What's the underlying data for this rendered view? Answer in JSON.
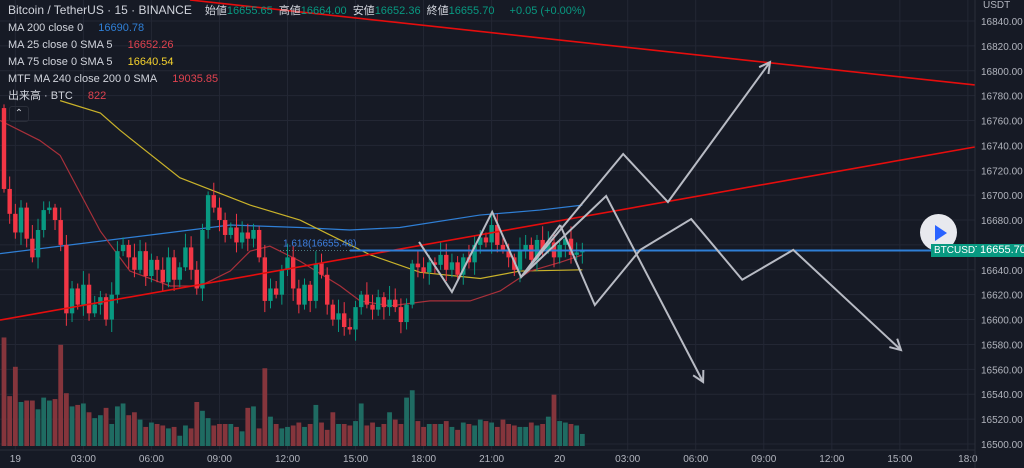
{
  "header": {
    "title": "Bitcoin / TetherUS · 15 · BINANCE",
    "ohlc": [
      {
        "label": "始値",
        "value": "16655.65"
      },
      {
        "label": "高値",
        "value": "16664.00"
      },
      {
        "label": "安値",
        "value": "16652.36"
      },
      {
        "label": "終値",
        "value": "16655.70"
      }
    ],
    "change": "+0.05 (+0.00%)"
  },
  "indicators": [
    {
      "label": "MA 200 close 0",
      "value": "16690.78",
      "color": "#2f7fd6"
    },
    {
      "label": "MA 25 close 0 SMA 5",
      "value": "16652.26",
      "color": "#e0424f"
    },
    {
      "label": "MA 75 close 0 SMA 5",
      "value": "16640.54",
      "color": "#f5d22d"
    },
    {
      "label": "MTF MA 240 close 200 0 SMA",
      "value": "19035.85",
      "color": "#e0424f"
    },
    {
      "label": "出来高 · BTC",
      "value": "822",
      "color": "#e0424f"
    }
  ],
  "collapse_icon": "chevron-up-icon",
  "play_icon": "play-icon",
  "price_axis": {
    "unit": "USDT",
    "min": 16500,
    "max": 16840,
    "step": 20
  },
  "time_axis": {
    "labels": [
      "19",
      "03:00",
      "06:00",
      "09:00",
      "12:00",
      "15:00",
      "18:00",
      "21:00",
      "20",
      "03:00",
      "06:00",
      "09:00",
      "12:00",
      "15:00",
      "18:0"
    ],
    "candles_per_label": 12,
    "first_label_index": 2
  },
  "symbol_tag": "BTCUSDT",
  "last_price": "16655.70",
  "fib_label": "1.618(16655.48)",
  "colors": {
    "up": "#089981",
    "down": "#f23645",
    "background": "#161a25",
    "grid": "#232734",
    "trend": "#e50d0d",
    "fib": "#2f7fd6",
    "projection": "#b8bbc4"
  },
  "chart_data": {
    "type": "candlestick",
    "first_open": 16770,
    "close": [
      16705,
      16685,
      16670,
      16690,
      16665,
      16650,
      16672,
      16688,
      16690,
      16680,
      16660,
      16605,
      16625,
      16612,
      16628,
      16605,
      16612,
      16618,
      16600,
      16620,
      16655,
      16660,
      16650,
      16640,
      16655,
      16635,
      16648,
      16640,
      16630,
      16650,
      16632,
      16642,
      16658,
      16640,
      16625,
      16672,
      16700,
      16690,
      16680,
      16668,
      16674,
      16662,
      16670,
      16665,
      16672,
      16650,
      16615,
      16625,
      16620,
      16640,
      16650,
      16625,
      16612,
      16628,
      16615,
      16645,
      16636,
      16612,
      16600,
      16605,
      16594,
      16592,
      16610,
      16620,
      16612,
      16608,
      16618,
      16610,
      16616,
      16610,
      16598,
      16612,
      16645,
      16642,
      16638,
      16646,
      16644,
      16652,
      16640,
      16646,
      16636,
      16650,
      16646,
      16660,
      16666,
      16662,
      16676,
      16660,
      16656,
      16650,
      16640,
      16656,
      16660,
      16648,
      16664,
      16656,
      16662,
      16650,
      16660,
      16665,
      16652,
      16654,
      16655.7
    ],
    "volume": [
      7400,
      3400,
      5400,
      3000,
      3100,
      3100,
      2500,
      3300,
      3100,
      3200,
      6900,
      3600,
      2700,
      2800,
      2900,
      2300,
      1900,
      2100,
      2600,
      1500,
      2700,
      2900,
      2100,
      2300,
      1800,
      1300,
      1600,
      1500,
      1400,
      1200,
      1300,
      700,
      1400,
      1200,
      3000,
      2400,
      1900,
      1400,
      1500,
      1500,
      1500,
      1300,
      1000,
      2600,
      2700,
      1200,
      5300,
      2000,
      1500,
      1200,
      1300,
      1400,
      1600,
      1300,
      1500,
      2800,
      1600,
      1100,
      2300,
      1500,
      1500,
      1400,
      1700,
      2900,
      1400,
      1600,
      1300,
      1500,
      2300,
      1800,
      1500,
      3300,
      3800,
      1700,
      1300,
      1500,
      1500,
      1500,
      1700,
      1300,
      1100,
      1600,
      1500,
      1400,
      1800,
      1700,
      1600,
      1300,
      1800,
      1500,
      1400,
      1300,
      1300,
      1600,
      1400,
      1500,
      2000,
      3500,
      1700,
      1600,
      1500,
      1400,
      822
    ],
    "moving_averages": [
      {
        "name": "MA 200",
        "color": "#2f7fd6",
        "points": [
          [
            -0.7,
            16653
          ],
          [
            25.8,
            16668
          ],
          [
            39.9,
            16676
          ],
          [
            52.2,
            16674
          ],
          [
            61,
            16672
          ],
          [
            69.8,
            16674
          ],
          [
            83.9,
            16684
          ],
          [
            94.5,
            16688
          ],
          [
            102,
            16692
          ]
        ]
      },
      {
        "name": "MA 75",
        "color": "#c9b22a",
        "points": [
          [
            9.9,
            16776
          ],
          [
            17,
            16766
          ],
          [
            20.5,
            16752
          ],
          [
            31.0,
            16714
          ],
          [
            43.4,
            16692
          ],
          [
            52.2,
            16680
          ],
          [
            57.5,
            16668
          ],
          [
            64.6,
            16652
          ],
          [
            73.4,
            16638
          ],
          [
            84,
            16633
          ],
          [
            91,
            16639
          ],
          [
            102,
            16640
          ]
        ]
      },
      {
        "name": "MA 25",
        "color": "#a8303a",
        "points": [
          [
            -0.7,
            16760
          ],
          [
            6.3,
            16744
          ],
          [
            9.9,
            16732
          ],
          [
            17,
            16671
          ],
          [
            22.2,
            16639
          ],
          [
            29.3,
            16627
          ],
          [
            34.6,
            16627
          ],
          [
            39.9,
            16639
          ],
          [
            43.4,
            16655
          ],
          [
            46.9,
            16659
          ],
          [
            52.2,
            16647
          ],
          [
            59.3,
            16627
          ],
          [
            62.8,
            16615
          ],
          [
            68.1,
            16611
          ],
          [
            75.1,
            16615
          ],
          [
            82.2,
            16615
          ],
          [
            87.5,
            16623
          ],
          [
            92.8,
            16639
          ],
          [
            98.1,
            16646
          ],
          [
            102,
            16652
          ]
        ]
      }
    ],
    "trendlines": [
      [
        [
          -0.7,
          16599.6
        ],
        [
          171.2,
          16738.7
        ]
      ],
      [
        [
          32.8,
          16856.9
        ],
        [
          171.2,
          16788.6
        ]
      ]
    ],
    "fib_level": 16655.48,
    "projections": [
      {
        "points": [
          [
            73.2,
            16662.4
          ],
          [
            79,
            16622.2
          ],
          [
            86.1,
            16686.5
          ],
          [
            91.2,
            16634.2
          ],
          [
            98.1,
            16676
          ]
        ],
        "arrow": false
      },
      {
        "points": [
          [
            91.2,
            16634.2
          ],
          [
            109.2,
            16733.1
          ],
          [
            117.1,
            16694.5
          ],
          [
            135.1,
            16807
          ]
        ],
        "arrow": true
      },
      {
        "points": [
          [
            91.2,
            16634.2
          ],
          [
            106.2,
            16699.3
          ],
          [
            123.3,
            16549.8
          ]
        ],
        "arrow": true
      },
      {
        "points": [
          [
            98.1,
            16676
          ],
          [
            104.2,
            16611.7
          ],
          [
            112.2,
            16656
          ],
          [
            121.2,
            16680.8
          ],
          [
            130.2,
            16632
          ],
          [
            139.2,
            16656
          ],
          [
            158.2,
            16575.5
          ]
        ],
        "arrow": true
      }
    ]
  }
}
